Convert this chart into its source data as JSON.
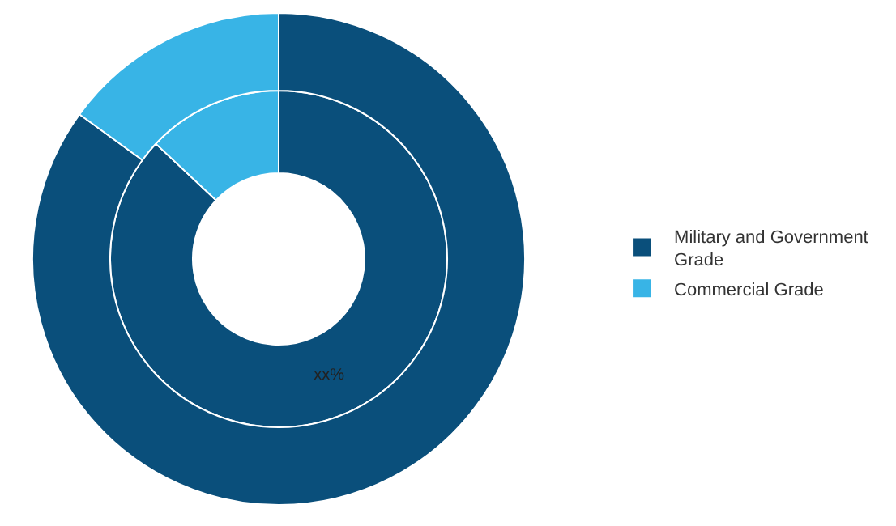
{
  "chart_data": {
    "type": "donut",
    "categories": [
      "Military and Government Grade",
      "Commercial Grade"
    ],
    "colors": [
      "#0a4f7b",
      "#38b4e6"
    ],
    "series": [
      {
        "values": [
          87,
          13
        ],
        "value_labels": [
          "xx%",
          null
        ]
      },
      {
        "values": [
          85,
          15
        ]
      }
    ],
    "legend": "right"
  }
}
